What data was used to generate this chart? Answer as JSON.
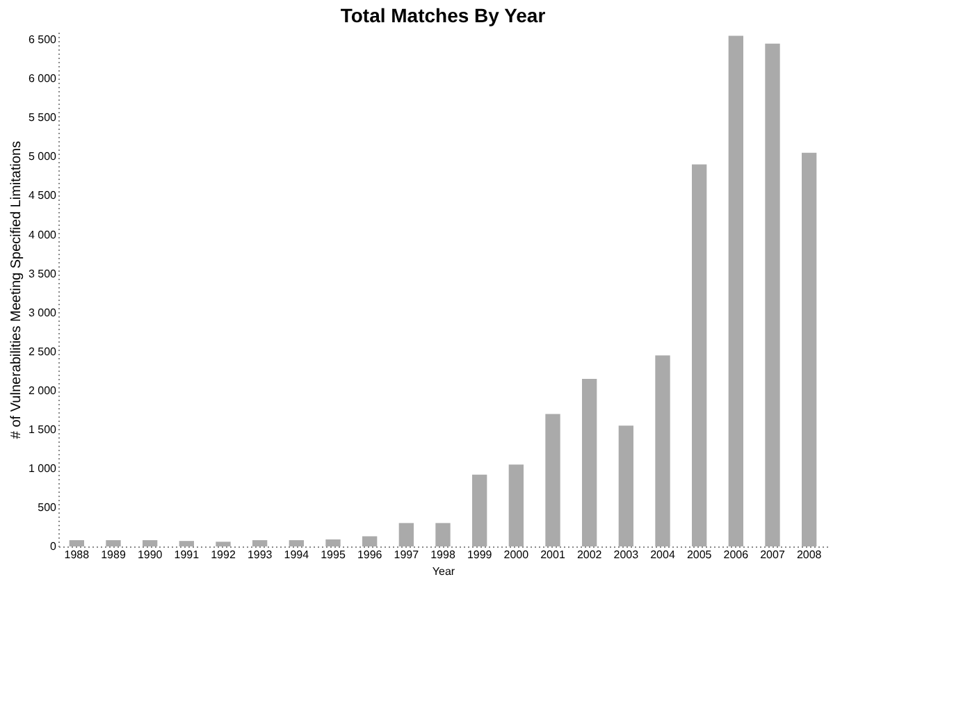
{
  "chart_data": {
    "type": "bar",
    "title": "Total Matches By Year",
    "xlabel": "Year",
    "ylabel": "# of Vulnerabilities Meeting Specified Limitations",
    "categories": [
      "1988",
      "1989",
      "1990",
      "1991",
      "1992",
      "1993",
      "1994",
      "1995",
      "1996",
      "1997",
      "1998",
      "1999",
      "2000",
      "2001",
      "2002",
      "2003",
      "2004",
      "2005",
      "2006",
      "2007",
      "2008"
    ],
    "values": [
      80,
      80,
      80,
      70,
      60,
      80,
      80,
      90,
      130,
      300,
      300,
      920,
      1050,
      1700,
      2150,
      1550,
      2450,
      4900,
      6550,
      6450,
      5050
    ],
    "color": "#aaaaaa",
    "ylim": [
      0,
      6600
    ],
    "yticks": [
      0,
      {
        "value": 500,
        "label": "500"
      },
      {
        "value": 1000,
        "label": "1 000"
      },
      {
        "value": 1500,
        "label": "1 500"
      },
      {
        "value": 2000,
        "label": "2 000"
      },
      {
        "value": 2500,
        "label": "2 500"
      },
      {
        "value": 3000,
        "label": "3 000"
      },
      {
        "value": 3500,
        "label": "3 500"
      },
      {
        "value": 4000,
        "label": "4 000"
      },
      {
        "value": 4500,
        "label": "4 500"
      },
      {
        "value": 5000,
        "label": "5 000"
      },
      {
        "value": 5500,
        "label": "5 500"
      },
      {
        "value": 6000,
        "label": "6 000"
      },
      {
        "value": 6500,
        "label": "6 500"
      }
    ],
    "grid": false
  }
}
